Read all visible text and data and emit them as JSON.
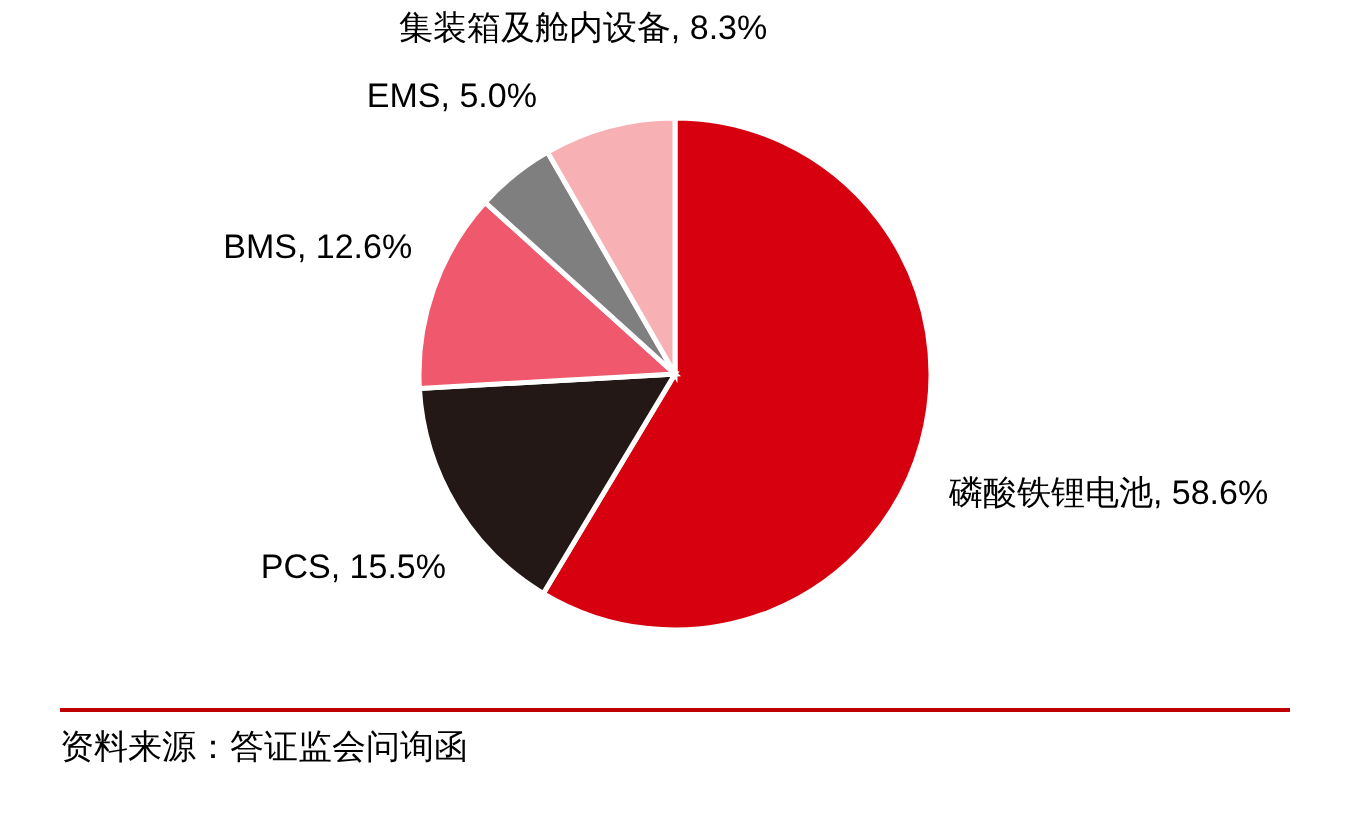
{
  "chart_data": {
    "type": "pie",
    "categories": [
      "磷酸铁锂电池",
      "PCS",
      "BMS",
      "EMS",
      "集装箱及舱内设备"
    ],
    "values": [
      58.6,
      15.5,
      12.6,
      5.0,
      8.3
    ],
    "value_labels": [
      ", 58.6%",
      ", 15.5%",
      ", 12.6%",
      ", 5.0%",
      ", 8.3%"
    ],
    "colors": [
      "#d7000f",
      "#231815",
      "#f0586e",
      "#7f7f7f",
      "#f7b1b5"
    ],
    "annotations": [
      "资料来源：答证监会问询函"
    ]
  }
}
